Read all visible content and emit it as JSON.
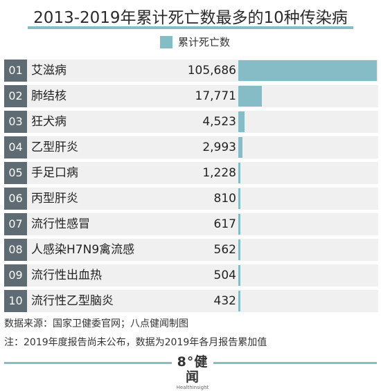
{
  "header": {
    "title": "2013-2019年累计死亡数最多的10种传染病"
  },
  "legend": {
    "label": "累计死亡数"
  },
  "colors": {
    "bar": "#85bcc6",
    "badge": "#5e6b73",
    "row_bg": "#f0f0f0"
  },
  "chart_data": {
    "type": "bar",
    "orientation": "horizontal",
    "title": "2013-2019年累计死亡数最多的10种传染病",
    "ranks": [
      "01",
      "02",
      "03",
      "04",
      "05",
      "06",
      "07",
      "08",
      "09",
      "10"
    ],
    "categories": [
      "艾滋病",
      "肺结核",
      "狂犬病",
      "乙型肝炎",
      "手足口病",
      "丙型肝炎",
      "流行性感冒",
      "人感染H7N9禽流感",
      "流行性出血热",
      "流行性乙型脑炎"
    ],
    "value_labels": [
      "105,686",
      "17,771",
      "4,523",
      "2,993",
      "1,228",
      "810",
      "617",
      "562",
      "504",
      "432"
    ],
    "series": [
      {
        "name": "累计死亡数",
        "values": [
          105686,
          17771,
          4523,
          2993,
          1228,
          810,
          617,
          562,
          504,
          432
        ]
      }
    ],
    "xlim": [
      0,
      105686
    ],
    "grid": false,
    "legend_position": "top"
  },
  "footer": {
    "source": "数据来源：国家卫健委官网；八点健闻制图",
    "note": "注：2019年度报告尚未公布，数据为2019年各月报告累加值",
    "logo_main": "8°健闻",
    "logo_sub": "Healthinsight"
  }
}
